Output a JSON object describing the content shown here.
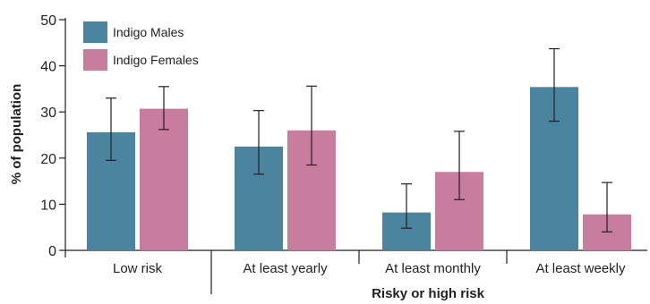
{
  "chart_data": {
    "type": "bar",
    "categories": [
      "Low risk",
      "At least yearly",
      "At least monthly",
      "At least weekly"
    ],
    "group_label": "Risky or high risk",
    "ylabel": "% of population",
    "ylim": [
      0,
      50
    ],
    "yticks": [
      0,
      10,
      20,
      30,
      40,
      50
    ],
    "grid": false,
    "legend_position": "top-left",
    "series": [
      {
        "name": "Indigo Males",
        "color": "#4a849f",
        "values": [
          25.6,
          22.5,
          8.2,
          35.4
        ],
        "error_low": [
          19.5,
          16.5,
          4.8,
          28.0
        ],
        "error_high": [
          33.0,
          30.3,
          14.4,
          43.7
        ]
      },
      {
        "name": "Indigo Females",
        "color": "#c97d9e",
        "values": [
          30.7,
          26.0,
          17.0,
          7.8
        ],
        "error_low": [
          26.2,
          18.5,
          11.0,
          4.0
        ],
        "error_high": [
          35.5,
          35.6,
          25.8,
          14.7
        ]
      }
    ]
  }
}
